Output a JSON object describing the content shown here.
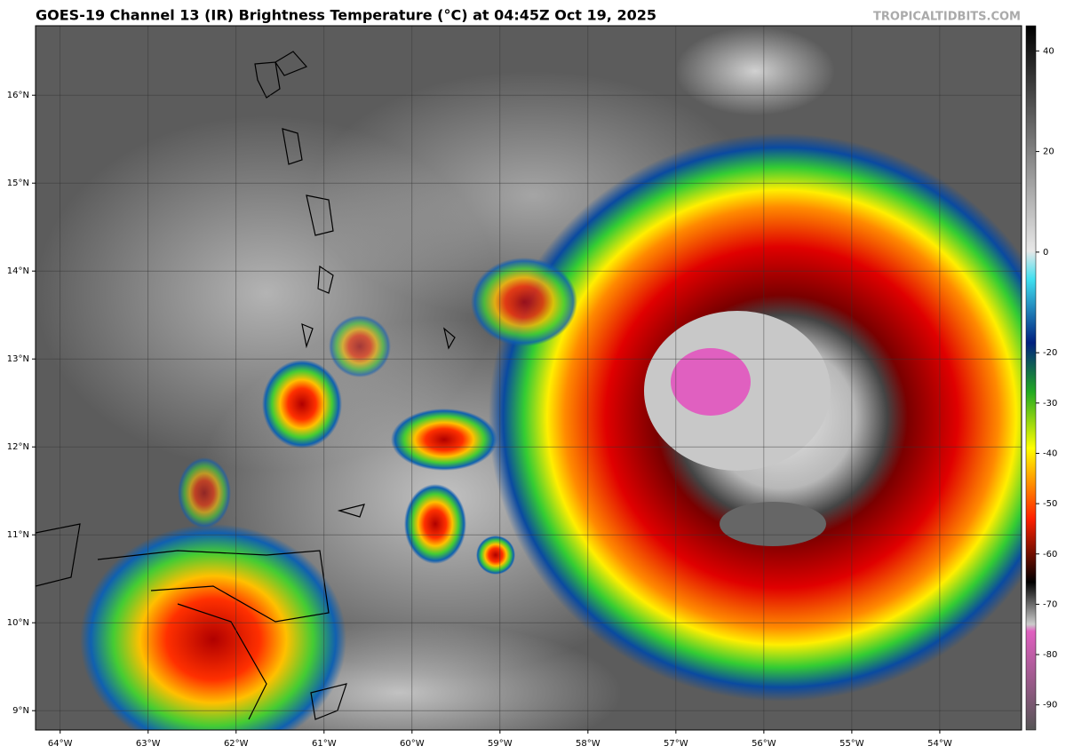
{
  "header": {
    "title": "GOES-19 Channel 13 (IR) Brightness Temperature (°C) at 04:45Z Oct 19, 2025",
    "site": "TROPICALTIDBITS.COM"
  },
  "map": {
    "xlim": [
      -64.28,
      -53.07
    ],
    "ylim": [
      8.78,
      16.79
    ],
    "xticks": [
      {
        "value": -64,
        "label": "64°W"
      },
      {
        "value": -63,
        "label": "63°W"
      },
      {
        "value": -62,
        "label": "62°W"
      },
      {
        "value": -61,
        "label": "61°W"
      },
      {
        "value": -60,
        "label": "60°W"
      },
      {
        "value": -59,
        "label": "59°W"
      },
      {
        "value": -58,
        "label": "58°W"
      },
      {
        "value": -57,
        "label": "57°W"
      },
      {
        "value": -56,
        "label": "56°W"
      },
      {
        "value": -55,
        "label": "55°W"
      },
      {
        "value": -54,
        "label": "54°W"
      }
    ],
    "yticks": [
      {
        "value": 16,
        "label": "16°N"
      },
      {
        "value": 15,
        "label": "15°N"
      },
      {
        "value": 14,
        "label": "14°N"
      },
      {
        "value": 13,
        "label": "13°N"
      },
      {
        "value": 12,
        "label": "12°N"
      },
      {
        "value": 11,
        "label": "11°N"
      },
      {
        "value": 10,
        "label": "10°N"
      },
      {
        "value": 9,
        "label": "9°N"
      }
    ]
  },
  "colorbar": {
    "lim": [
      -95,
      45
    ],
    "ticks": [
      40,
      20,
      0,
      -20,
      -30,
      -40,
      -50,
      -60,
      -70,
      -80,
      -90
    ]
  }
}
